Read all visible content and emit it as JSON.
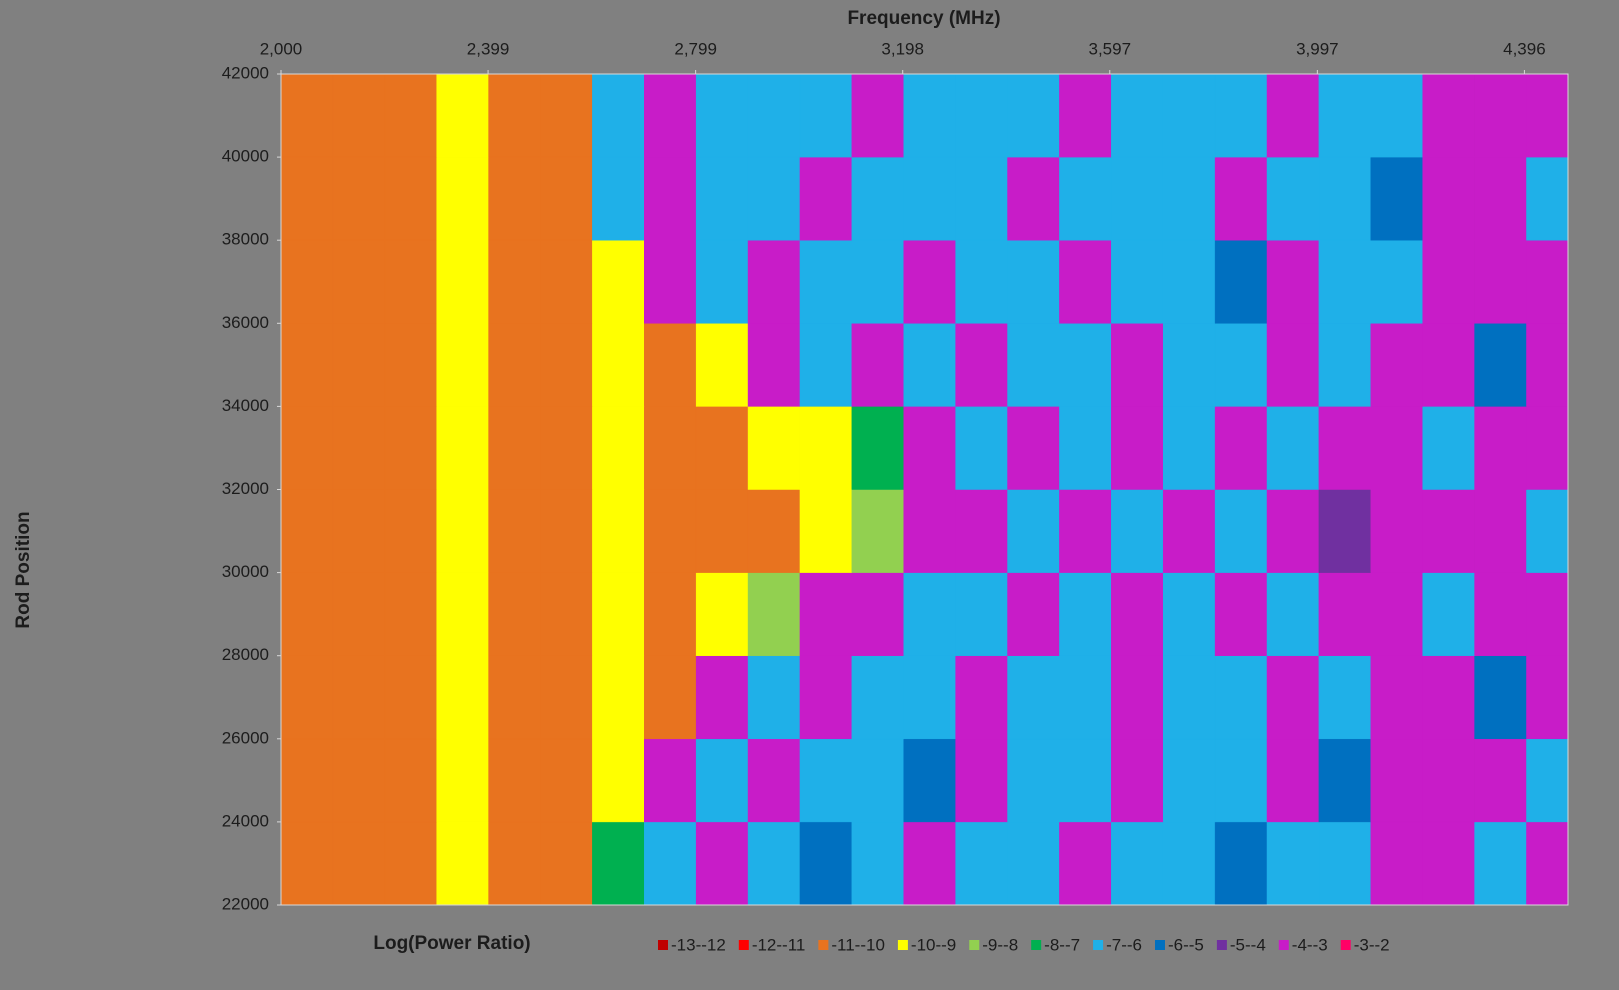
{
  "chart_data": {
    "type": "heatmap",
    "title": "Frequency (MHz)",
    "y_label": "Rod Position",
    "legend_title": "Log(Power Ratio)",
    "x": [
      2000,
      2100,
      2200,
      2300,
      2400,
      2500,
      2600,
      2700,
      2800,
      2900,
      3000,
      3100,
      3200,
      3300,
      3400,
      3500,
      3600,
      3700,
      3800,
      3900,
      4000,
      4100,
      4200,
      4300,
      4400
    ],
    "y": [
      22000,
      24000,
      26000,
      28000,
      30000,
      32000,
      34000,
      36000,
      38000,
      40000
    ],
    "values": [
      [
        -10.5,
        -10.5,
        -10.5,
        -9.5,
        -10.5,
        -10.5,
        -7.5,
        -6.5,
        -3.5,
        -6.5,
        -5.5,
        -6.5,
        -3.5,
        -6.5,
        -6.5,
        -3.5,
        -6.5,
        -6.5,
        -5.5,
        -6.5,
        -6.5,
        -3.5,
        -3.5,
        -6.5,
        -3.5
      ],
      [
        -10.5,
        -10.5,
        -10.5,
        -9.5,
        -10.5,
        -10.5,
        -9.5,
        -3.5,
        -6.5,
        -3.5,
        -6.5,
        -6.5,
        -5.5,
        -3.5,
        -6.5,
        -6.5,
        -3.5,
        -6.5,
        -6.5,
        -3.5,
        -5.5,
        -3.5,
        -3.5,
        -3.5,
        -6.5
      ],
      [
        -10.5,
        -10.5,
        -10.5,
        -9.5,
        -10.5,
        -10.5,
        -9.5,
        -10.5,
        -3.5,
        -6.5,
        -3.5,
        -6.5,
        -6.5,
        -3.5,
        -6.5,
        -6.5,
        -3.5,
        -6.5,
        -6.5,
        -3.5,
        -6.5,
        -3.5,
        -3.5,
        -5.5,
        -3.5
      ],
      [
        -10.5,
        -10.5,
        -10.5,
        -9.5,
        -10.5,
        -10.5,
        -9.5,
        -10.5,
        -9.5,
        -8.5,
        -3.5,
        -3.5,
        -6.5,
        -6.5,
        -3.5,
        -6.5,
        -3.5,
        -6.5,
        -3.5,
        -6.5,
        -3.5,
        -3.5,
        -6.5,
        -3.5,
        -3.5
      ],
      [
        -10.5,
        -10.5,
        -10.5,
        -9.5,
        -10.5,
        -10.5,
        -9.5,
        -10.5,
        -10.5,
        -10.5,
        -9.5,
        -8.5,
        -3.5,
        -3.5,
        -6.5,
        -3.5,
        -6.5,
        -3.5,
        -6.5,
        -3.5,
        -4.5,
        -3.5,
        -3.5,
        -3.5,
        -6.5
      ],
      [
        -10.5,
        -10.5,
        -10.5,
        -9.5,
        -10.5,
        -10.5,
        -9.5,
        -10.5,
        -10.5,
        -9.5,
        -9.5,
        -7.5,
        -3.5,
        -6.5,
        -3.5,
        -6.5,
        -3.5,
        -6.5,
        -3.5,
        -6.5,
        -3.5,
        -3.5,
        -6.5,
        -3.5,
        -3.5
      ],
      [
        -10.5,
        -10.5,
        -10.5,
        -9.5,
        -10.5,
        -10.5,
        -9.5,
        -10.5,
        -9.5,
        -3.5,
        -6.5,
        -3.5,
        -6.5,
        -3.5,
        -6.5,
        -6.5,
        -3.5,
        -6.5,
        -6.5,
        -3.5,
        -6.5,
        -3.5,
        -3.5,
        -5.5,
        -3.5
      ],
      [
        -10.5,
        -10.5,
        -10.5,
        -9.5,
        -10.5,
        -10.5,
        -9.5,
        -3.5,
        -6.5,
        -3.5,
        -6.5,
        -6.5,
        -3.5,
        -6.5,
        -6.5,
        -3.5,
        -6.5,
        -6.5,
        -5.5,
        -3.5,
        -6.5,
        -6.5,
        -3.5,
        -3.5,
        -3.5
      ],
      [
        -10.5,
        -10.5,
        -10.5,
        -9.5,
        -10.5,
        -10.5,
        -6.5,
        -3.5,
        -6.5,
        -6.5,
        -3.5,
        -6.5,
        -6.5,
        -6.5,
        -3.5,
        -6.5,
        -6.5,
        -6.5,
        -3.5,
        -6.5,
        -6.5,
        -5.5,
        -3.5,
        -3.5,
        -6.5
      ],
      [
        -10.5,
        -10.5,
        -10.5,
        -9.5,
        -10.5,
        -10.5,
        -6.5,
        -3.5,
        -6.5,
        -6.5,
        -6.5,
        -3.5,
        -6.5,
        -6.5,
        -6.5,
        -3.5,
        -6.5,
        -6.5,
        -6.5,
        -3.5,
        -6.5,
        -6.5,
        -3.5,
        -3.5,
        -3.5
      ]
    ],
    "xlim": [
      2000,
      4480
    ],
    "ylim": [
      22000,
      42000
    ],
    "xticks": [
      {
        "value": 2000,
        "label": "2,000"
      },
      {
        "value": 2399,
        "label": "2,399"
      },
      {
        "value": 2799,
        "label": "2,799"
      },
      {
        "value": 3198,
        "label": "3,198"
      },
      {
        "value": 3597,
        "label": "3,597"
      },
      {
        "value": 3997,
        "label": "3,997"
      },
      {
        "value": 4396,
        "label": "4,396"
      }
    ],
    "yticks": [
      22000,
      24000,
      26000,
      28000,
      30000,
      32000,
      34000,
      36000,
      38000,
      40000,
      42000
    ],
    "levels": [
      -13,
      -12,
      -11,
      -10,
      -9,
      -8,
      -7,
      -6,
      -5,
      -4,
      -3,
      -2
    ],
    "bands": [
      {
        "label": "-13--12",
        "color": "#c00000"
      },
      {
        "label": "-12--11",
        "color": "#ff0000"
      },
      {
        "label": "-11--10",
        "color": "#e8731f"
      },
      {
        "label": "-10--9",
        "color": "#ffff00"
      },
      {
        "label": "-9--8",
        "color": "#92d050"
      },
      {
        "label": "-8--7",
        "color": "#00b050"
      },
      {
        "label": "-7--6",
        "color": "#1fb0e8"
      },
      {
        "label": "-6--5",
        "color": "#0070c0"
      },
      {
        "label": "-5--4",
        "color": "#7030a0"
      },
      {
        "label": "-4--3",
        "color": "#c81cc8"
      },
      {
        "label": "-3--2",
        "color": "#ff0066"
      }
    ]
  }
}
